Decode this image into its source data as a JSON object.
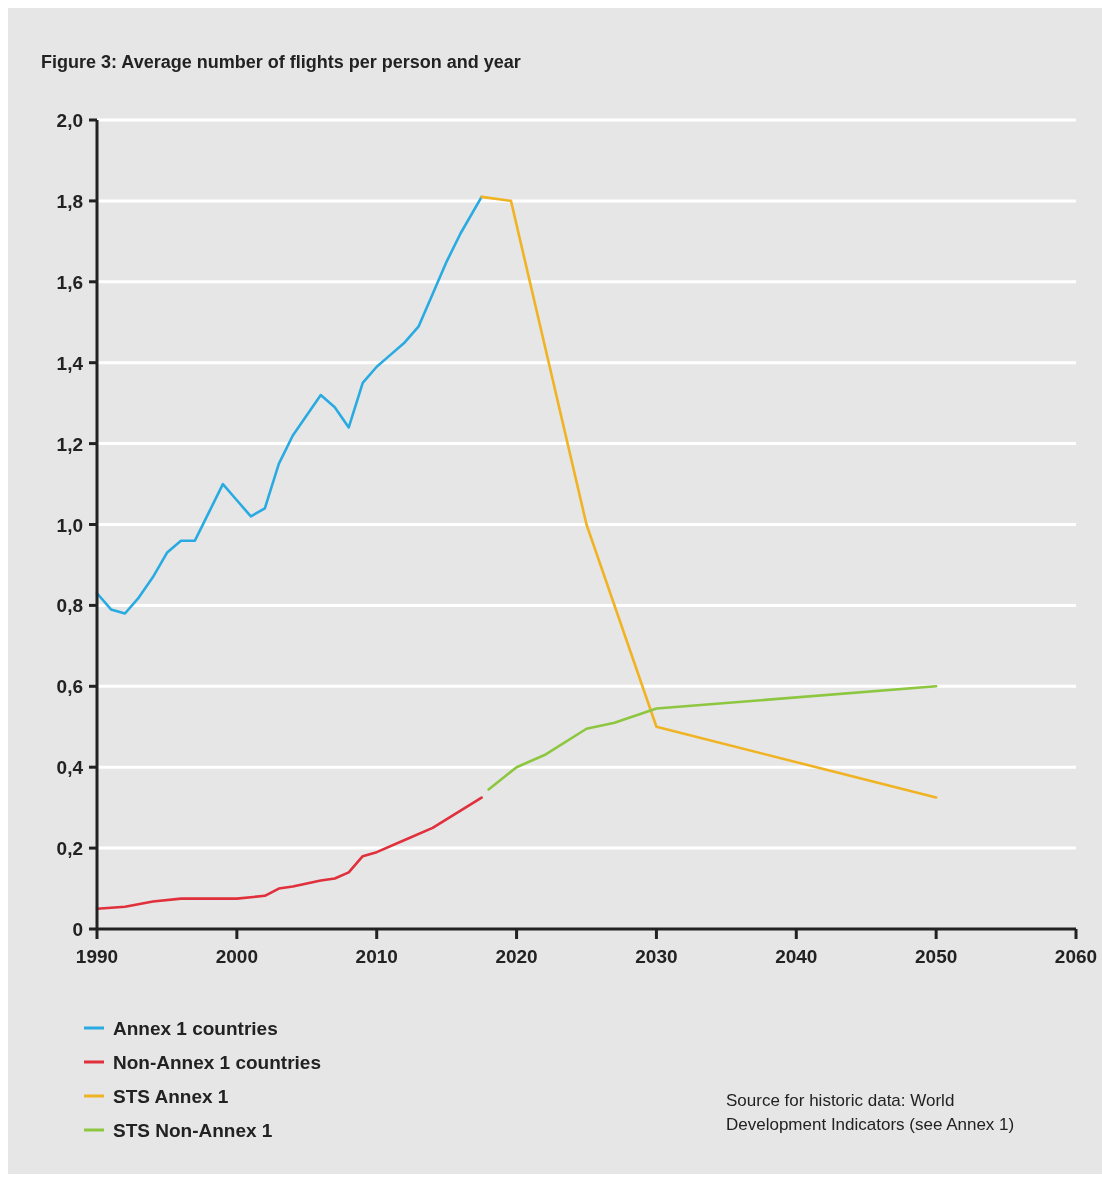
{
  "chart_data": {
    "type": "line",
    "title": "Figure 3: Average number of flights per person and year",
    "xlim": [
      1990,
      2060
    ],
    "xticks": [
      1990,
      2000,
      2010,
      2020,
      2030,
      2040,
      2050,
      2060
    ],
    "ylim": [
      0,
      2
    ],
    "yticks": [
      {
        "value": 0,
        "label": "0"
      },
      {
        "value": 0.2,
        "label": "0,2"
      },
      {
        "value": 0.4,
        "label": "0,4"
      },
      {
        "value": 0.6,
        "label": "0,6"
      },
      {
        "value": 0.8,
        "label": "0,8"
      },
      {
        "value": 1,
        "label": "1,0"
      },
      {
        "value": 1.2,
        "label": "1,2"
      },
      {
        "value": 1.4,
        "label": "1,4"
      },
      {
        "value": 1.6,
        "label": "1,6"
      },
      {
        "value": 1.8,
        "label": "1,8"
      },
      {
        "value": 2,
        "label": "2,0"
      }
    ],
    "grid": "y",
    "legend": "bottom",
    "marker": "none",
    "line_style": "solid",
    "series": [
      {
        "name": "Annex 1 countries",
        "color": "#29abe2",
        "x": [
          1990,
          1991,
          1992,
          1993,
          1994,
          1995,
          1996,
          1997,
          1998,
          1999,
          2000,
          2001,
          2002,
          2003,
          2004,
          2005,
          2006,
          2007,
          2008,
          2009,
          2010,
          2011,
          2012,
          2013,
          2014,
          2015,
          2016,
          2017.5
        ],
        "values": [
          0.83,
          0.79,
          0.78,
          0.82,
          0.87,
          0.93,
          0.96,
          0.96,
          1.03,
          1.1,
          1.06,
          1.02,
          1.04,
          1.15,
          1.22,
          1.27,
          1.32,
          1.29,
          1.24,
          1.35,
          1.39,
          1.42,
          1.45,
          1.49,
          1.57,
          1.65,
          1.72,
          1.81
        ]
      },
      {
        "name": "Non-Annex 1 countries",
        "color": "#e0303c",
        "x": [
          1990,
          1992,
          1994,
          1996,
          2000,
          2002,
          2003,
          2004,
          2006,
          2007,
          2008,
          2009,
          2010,
          2012,
          2014,
          2017.5
        ],
        "values": [
          0.05,
          0.055,
          0.068,
          0.075,
          0.075,
          0.082,
          0.1,
          0.105,
          0.12,
          0.125,
          0.14,
          0.18,
          0.19,
          0.22,
          0.25,
          0.325
        ]
      },
      {
        "name": "STS Annex 1",
        "color": "#f0b323",
        "x": [
          2017.5,
          2019.6,
          2025,
          2030,
          2050
        ],
        "values": [
          1.81,
          1.8,
          1.0,
          0.5,
          0.325
        ]
      },
      {
        "name": "STS Non-Annex 1",
        "color": "#8dc63f",
        "x": [
          2018,
          2020,
          2022,
          2025,
          2027,
          2030,
          2050
        ],
        "values": [
          0.345,
          0.4,
          0.43,
          0.495,
          0.51,
          0.545,
          0.6
        ]
      }
    ],
    "annotations": [
      "Source for historic data: World Development Indicators (see Annex 1)"
    ]
  }
}
